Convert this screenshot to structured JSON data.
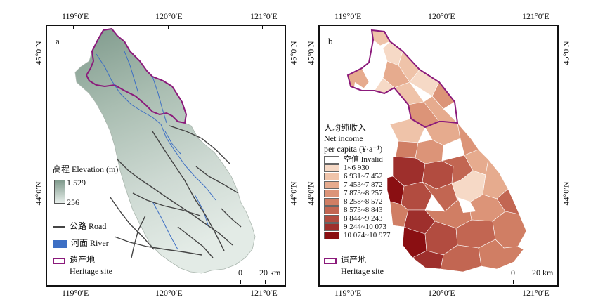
{
  "panel_a": {
    "letter": "a",
    "top_lon_labels": [
      "119°0′E",
      "120°0′E",
      "121°0′E"
    ],
    "bottom_lon_labels": [
      "119°0′E",
      "120°0′E",
      "121°0′E"
    ],
    "left_lat_labels": [
      "45°0′N",
      "44°0′N"
    ],
    "right_lat_labels": [
      "45°0′N",
      "44°0′N"
    ],
    "legend": {
      "elevation_title": "高程 Elevation (m)",
      "elev_high": "1 529",
      "elev_low": "256",
      "road": "公路 Road",
      "river": "河面 River",
      "heritage_cn": "遗产地",
      "heritage_en": "Heritage site"
    },
    "scale": {
      "zero": "0",
      "label": "20 km"
    }
  },
  "panel_b": {
    "letter": "b",
    "top_lon_labels": [
      "119°0′E",
      "120°0′E",
      "121°0′E"
    ],
    "bottom_lon_labels": [
      "119°0′E",
      "120°0′E",
      "121°0′E"
    ],
    "left_lat_labels": [
      "45°0′N",
      "44°0′N"
    ],
    "right_lat_labels": [
      "45°0′N",
      "44°0′N"
    ],
    "legend": {
      "title_cn": "人均纯收入",
      "title_en1": "Net income",
      "title_en2": "per capita (¥·a⁻¹)",
      "classes": [
        {
          "label": "空值 Invalid",
          "color": "#ffffff"
        },
        {
          "label": "1~6 930",
          "color": "#f6d9c6"
        },
        {
          "label": "6 931~7 452",
          "color": "#efc3a9"
        },
        {
          "label": "7 453~7 872",
          "color": "#e6ab8e"
        },
        {
          "label": "7 873~8 257",
          "color": "#dc9478"
        },
        {
          "label": "8 258~8 572",
          "color": "#d07e64"
        },
        {
          "label": "8 573~8 843",
          "color": "#c26652"
        },
        {
          "label": "8 844~9 243",
          "color": "#b24c40"
        },
        {
          "label": "9 244~10 073",
          "color": "#9e2f2c"
        },
        {
          "label": "10 074~10 977",
          "color": "#8a0f12"
        }
      ],
      "heritage_cn": "遗产地",
      "heritage_en": "Heritage site"
    },
    "scale": {
      "zero": "0",
      "label": "20 km"
    }
  },
  "colors": {
    "heritage_border": "#8b1a7b",
    "river": "#3d6fc4",
    "road": "#444444",
    "terrain_high": "#7f9a8c",
    "terrain_low": "#e8efec"
  }
}
